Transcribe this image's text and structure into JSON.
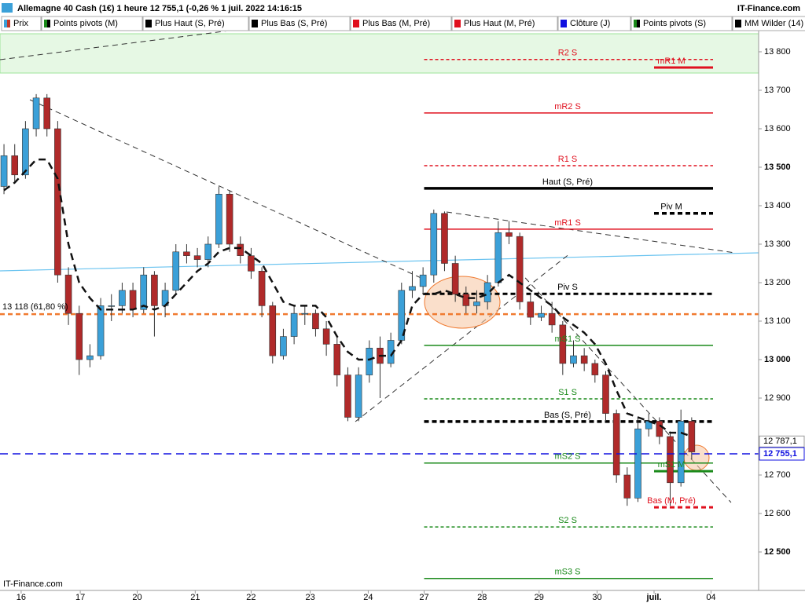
{
  "chart_data": {
    "type": "candlestick",
    "title": "Allemagne 40 Cash (1€) 1 heure 12 755,1 (-0,26 % 1 juil. 2022 14:16:15",
    "brand": "IT-Finance.com",
    "footer": "IT-Finance.com",
    "legend": [
      {
        "label": "Prix",
        "colors": [
          "#3ba0d8",
          "#c0392b"
        ]
      },
      {
        "label": "Points pivots (M)",
        "colors": [
          "#1a8a1a",
          "#000000"
        ]
      },
      {
        "label": "Plus Haut (S, Pré)",
        "colors": [
          "#000000",
          "#000000"
        ]
      },
      {
        "label": "Plus Bas (S, Pré)",
        "colors": [
          "#000000",
          "#000000"
        ]
      },
      {
        "label": "Plus Bas (M, Pré)",
        "colors": [
          "#e0101e",
          "#e0101e"
        ]
      },
      {
        "label": "Plus Haut (M, Pré)",
        "colors": [
          "#e0101e",
          "#e0101e"
        ]
      },
      {
        "label": "Clôture (J)",
        "colors": [
          "#1010e0",
          "#1010e0"
        ]
      },
      {
        "label": "Points pivots (S)",
        "colors": [
          "#1a8a1a",
          "#000000"
        ]
      },
      {
        "label": "MM Wilder (14)",
        "colors": [
          "#000000",
          "#000000"
        ]
      }
    ],
    "up_color": "#3ba0d8",
    "down_color": "#b02a2a",
    "ylim": [
      12400,
      13853
    ],
    "yticks": [
      {
        "value": 12500,
        "label": "12 500"
      },
      {
        "value": 12600,
        "label": "12 600"
      },
      {
        "value": 12700,
        "label": "12 700"
      },
      {
        "value": 12900,
        "label": "12 900"
      },
      {
        "value": 13000,
        "label": "13 000"
      },
      {
        "value": 13100,
        "label": "13 100"
      },
      {
        "value": 13200,
        "label": "13 200"
      },
      {
        "value": 13300,
        "label": "13 300"
      },
      {
        "value": 13400,
        "label": "13 400"
      },
      {
        "value": 13500,
        "label": "13 500"
      },
      {
        "value": 13600,
        "label": "13 600"
      },
      {
        "value": 13700,
        "label": "13 700"
      },
      {
        "value": 13800,
        "label": "13 800"
      }
    ],
    "xlim": [
      -0.37,
      70.23
    ],
    "xticks": [
      {
        "value": 1.6,
        "label": "16"
      },
      {
        "value": 7.1,
        "label": "17"
      },
      {
        "value": 12.4,
        "label": "20"
      },
      {
        "value": 17.8,
        "label": "21"
      },
      {
        "value": 23.0,
        "label": "22"
      },
      {
        "value": 28.5,
        "label": "23"
      },
      {
        "value": 33.9,
        "label": "24"
      },
      {
        "value": 39.1,
        "label": "27"
      },
      {
        "value": 44.5,
        "label": "28"
      },
      {
        "value": 49.8,
        "label": "29"
      },
      {
        "value": 55.2,
        "label": "30"
      },
      {
        "value": 60.5,
        "label": "juil."
      },
      {
        "value": 65.8,
        "label": "04"
      }
    ],
    "candles": [
      [
        13450,
        13560,
        13430,
        13530
      ],
      [
        13530,
        13560,
        13460,
        13480
      ],
      [
        13480,
        13620,
        13470,
        13600
      ],
      [
        13600,
        13690,
        13580,
        13680
      ],
      [
        13680,
        13690,
        13580,
        13600
      ],
      [
        13600,
        13620,
        13200,
        13220
      ],
      [
        13220,
        13240,
        13090,
        13120
      ],
      [
        13120,
        13140,
        12960,
        13000
      ],
      [
        13000,
        13040,
        12980,
        13010
      ],
      [
        13010,
        13160,
        13000,
        13140
      ],
      [
        13140,
        13170,
        13100,
        13140
      ],
      [
        13140,
        13200,
        13120,
        13180
      ],
      [
        13180,
        13200,
        13110,
        13130
      ],
      [
        13130,
        13240,
        13120,
        13220
      ],
      [
        13220,
        13230,
        13060,
        13140
      ],
      [
        13140,
        13200,
        13110,
        13180
      ],
      [
        13180,
        13300,
        13170,
        13280
      ],
      [
        13280,
        13300,
        13250,
        13270
      ],
      [
        13270,
        13290,
        13240,
        13260
      ],
      [
        13260,
        13320,
        13240,
        13300
      ],
      [
        13300,
        13450,
        13290,
        13430
      ],
      [
        13430,
        13440,
        13280,
        13300
      ],
      [
        13300,
        13320,
        13250,
        13270
      ],
      [
        13270,
        13290,
        13210,
        13230
      ],
      [
        13230,
        13240,
        13110,
        13140
      ],
      [
        13140,
        13150,
        12990,
        13010
      ],
      [
        13010,
        13080,
        13000,
        13060
      ],
      [
        13060,
        13140,
        13040,
        13120
      ],
      [
        13120,
        13140,
        13090,
        13120
      ],
      [
        13120,
        13130,
        13060,
        13080
      ],
      [
        13080,
        13100,
        13010,
        13040
      ],
      [
        13040,
        13060,
        12930,
        12960
      ],
      [
        12960,
        12980,
        12840,
        12850
      ],
      [
        12850,
        12980,
        12840,
        12960
      ],
      [
        12960,
        13050,
        12940,
        13030
      ],
      [
        13030,
        13060,
        12900,
        12990
      ],
      [
        12990,
        13070,
        12980,
        13050
      ],
      [
        13050,
        13200,
        13040,
        13180
      ],
      [
        13180,
        13230,
        13160,
        13190
      ],
      [
        13190,
        13240,
        13170,
        13220
      ],
      [
        13220,
        13390,
        13200,
        13380
      ],
      [
        13380,
        13385,
        13230,
        13250
      ],
      [
        13250,
        13270,
        13150,
        13170
      ],
      [
        13170,
        13190,
        13120,
        13140
      ],
      [
        13140,
        13180,
        13120,
        13150
      ],
      [
        13150,
        13220,
        13130,
        13200
      ],
      [
        13200,
        13360,
        13190,
        13330
      ],
      [
        13330,
        13360,
        13300,
        13320
      ],
      [
        13320,
        13330,
        13130,
        13150
      ],
      [
        13150,
        13170,
        13090,
        13110
      ],
      [
        13110,
        13140,
        13100,
        13120
      ],
      [
        13120,
        13150,
        13070,
        13090
      ],
      [
        13090,
        13100,
        12960,
        12990
      ],
      [
        12990,
        13050,
        12980,
        13010
      ],
      [
        13010,
        13030,
        12970,
        12990
      ],
      [
        12990,
        13000,
        12940,
        12960
      ],
      [
        12960,
        12970,
        12840,
        12860
      ],
      [
        12860,
        12870,
        12680,
        12700
      ],
      [
        12700,
        12720,
        12620,
        12640
      ],
      [
        12640,
        12850,
        12630,
        12820
      ],
      [
        12820,
        12860,
        12800,
        12840
      ],
      [
        12840,
        12850,
        12780,
        12800
      ],
      [
        12800,
        12810,
        12620,
        12680
      ],
      [
        12680,
        12870,
        12670,
        12840
      ],
      [
        12840,
        12850,
        12740,
        12760
      ]
    ],
    "mm_wilder": [
      13440,
      13460,
      13490,
      13520,
      13520,
      13470,
      13300,
      13200,
      13160,
      13130,
      13130,
      13130,
      13130,
      13140,
      13130,
      13140,
      13170,
      13200,
      13230,
      13250,
      13280,
      13290,
      13290,
      13270,
      13250,
      13200,
      13150,
      13140,
      13140,
      13140,
      13110,
      13060,
      13020,
      13000,
      13000,
      13010,
      13010,
      13050,
      13140,
      13170,
      13170,
      13180,
      13170,
      13160,
      13160,
      13170,
      13200,
      13220,
      13200,
      13180,
      13160,
      13140,
      13110,
      13090,
      13070,
      13040,
      12990,
      12920,
      12860,
      12850,
      12840,
      12830,
      12810,
      12810,
      12800
    ],
    "levels": [
      {
        "label": "R2 S",
        "value": 13780,
        "color": "#e0101e",
        "dashed": true,
        "width": 1.5,
        "period": "S"
      },
      {
        "label": "mR1 M",
        "value": 13759,
        "color": "#e0101e",
        "dashed": false,
        "width": 3,
        "period": "M"
      },
      {
        "label": "mR2 S",
        "value": 13641,
        "color": "#e0101e",
        "dashed": false,
        "width": 1.5,
        "period": "S"
      },
      {
        "label": "R1 S",
        "value": 13504,
        "color": "#e0101e",
        "dashed": true,
        "width": 1.5,
        "period": "S"
      },
      {
        "label": "Haut (S, Pré)",
        "value": 13445,
        "color": "#000000",
        "dashed": false,
        "width": 3.5,
        "period": "S"
      },
      {
        "label": "Piv M",
        "value": 13380,
        "color": "#000000",
        "dashed": true,
        "width": 3.5,
        "period": "M"
      },
      {
        "label": "mR1 S",
        "value": 13339,
        "color": "#e0101e",
        "dashed": false,
        "width": 1.5,
        "period": "S"
      },
      {
        "label": "Piv S",
        "value": 13171,
        "color": "#000000",
        "dashed": true,
        "width": 3,
        "period": "S"
      },
      {
        "label": "13 118 (61,80 %)",
        "value": 13118,
        "color": "#f07a30",
        "dashed": true,
        "width": 2.5,
        "period": "all"
      },
      {
        "label": "mS1 S",
        "value": 13037,
        "color": "#1a8a1a",
        "dashed": false,
        "width": 1.5,
        "period": "S"
      },
      {
        "label": "S1 S",
        "value": 12898,
        "color": "#1a8a1a",
        "dashed": true,
        "width": 1.5,
        "period": "S"
      },
      {
        "label": "Bas (S, Pré)",
        "value": 12839,
        "color": "#000000",
        "dashed": true,
        "width": 3.5,
        "period": "S"
      },
      {
        "label": "mS2 S",
        "value": 12731,
        "color": "#1a8a1a",
        "dashed": false,
        "width": 1.5,
        "period": "S"
      },
      {
        "label": "mS1 M",
        "value": 12710,
        "color": "#1a8a1a",
        "dashed": false,
        "width": 3,
        "period": "M"
      },
      {
        "label": "Bas (M, Pré)",
        "value": 12616,
        "color": "#e0101e",
        "dashed": true,
        "width": 3,
        "period": "M"
      },
      {
        "label": "S2 S",
        "value": 12565,
        "color": "#1a8a1a",
        "dashed": true,
        "width": 1.5,
        "period": "S"
      },
      {
        "label": "mS3 S",
        "value": 12431,
        "color": "#1a8a1a",
        "dashed": false,
        "width": 1.5,
        "period": "S"
      }
    ],
    "price_labels": [
      {
        "value": 12787.1,
        "label": "12 787,1",
        "highlight": false
      },
      {
        "value": 12755.1,
        "label": "12 755,1",
        "highlight": true,
        "color": "#1010e0"
      }
    ]
  }
}
